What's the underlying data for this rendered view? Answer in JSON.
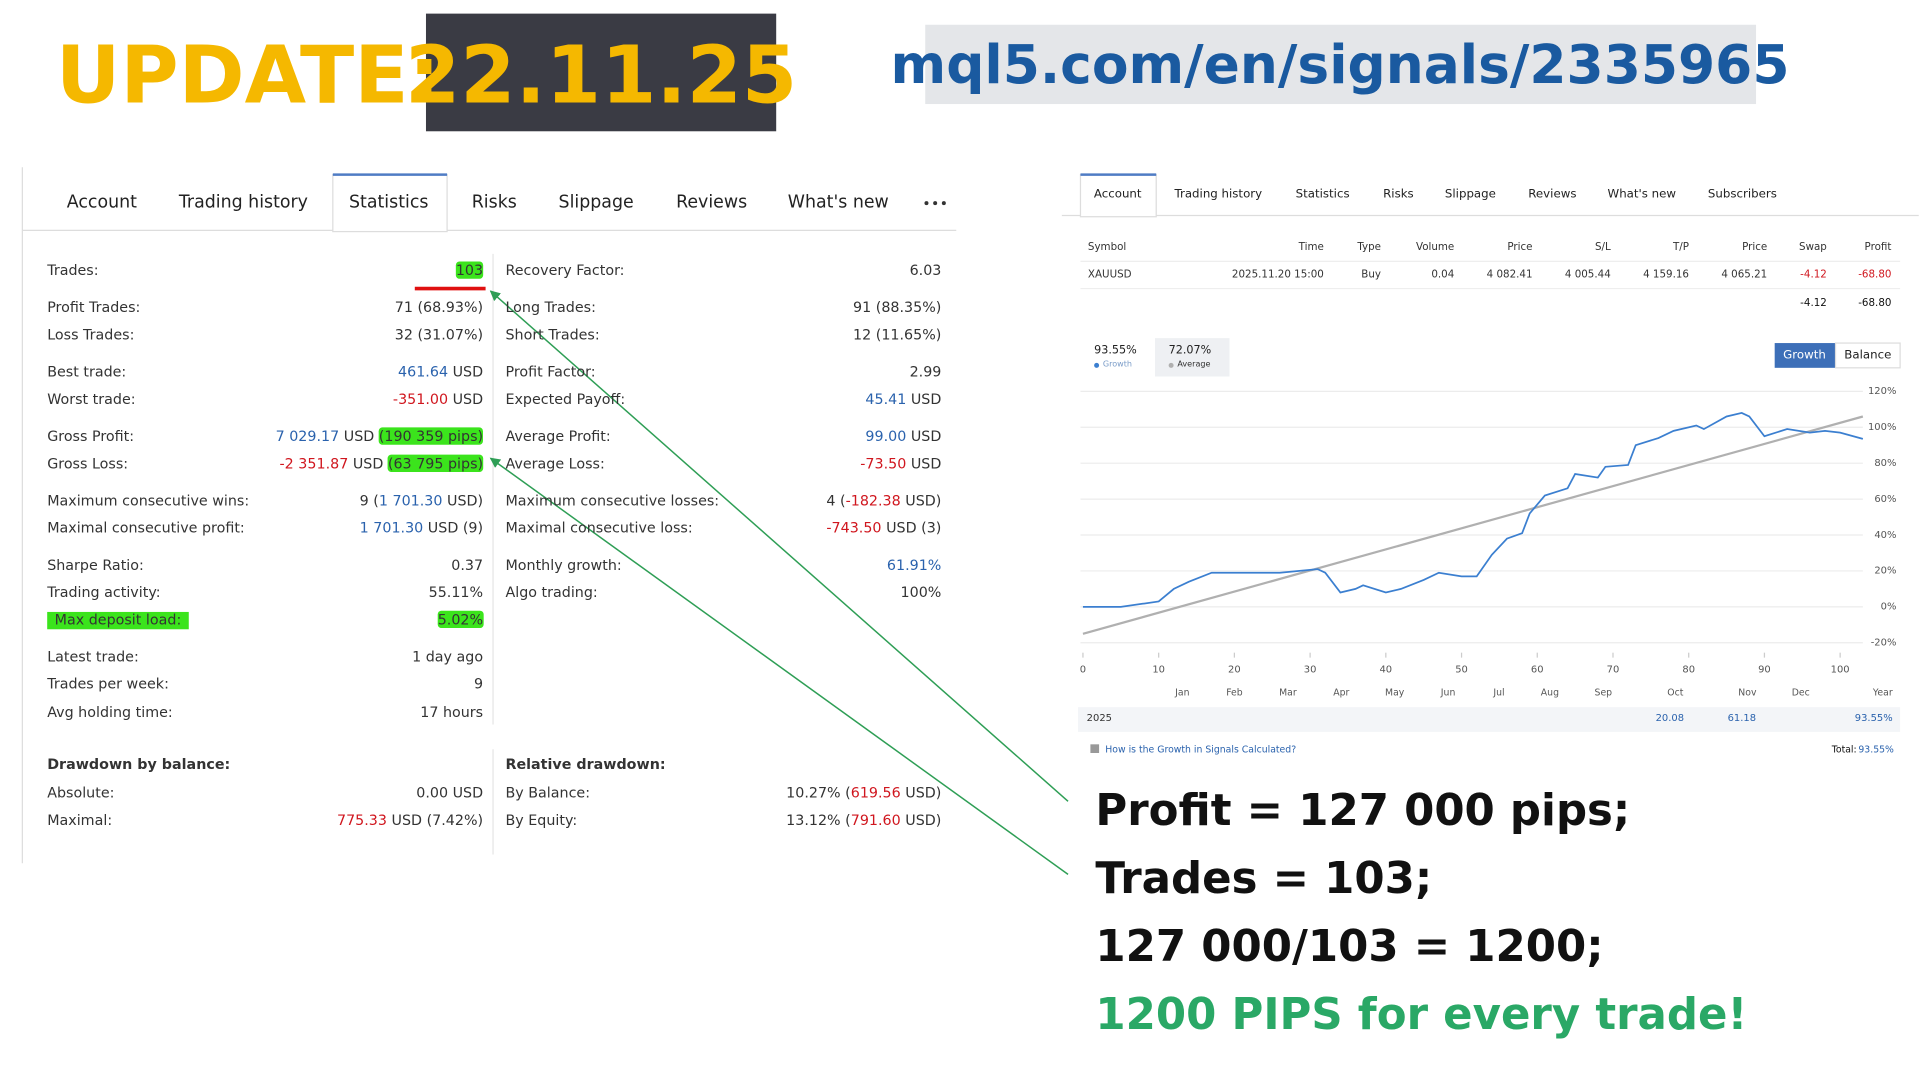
{
  "header": {
    "title": "UPDATE:",
    "date": "22.11.25",
    "url": "mql5.com/en/signals/2335965"
  },
  "left_panel": {
    "tabs": [
      "Account",
      "Trading history",
      "Statistics",
      "Risks",
      "Slippage",
      "Reviews",
      "What's new"
    ],
    "left_column": [
      {
        "label": "Trades:",
        "value": [
          {
            "text": "103",
            "highlight": "#3be41c"
          }
        ]
      },
      {
        "label": "Profit Trades:",
        "value": [
          "71 (68.93%)"
        ]
      },
      {
        "label": "Loss Trades:",
        "value": [
          "32 (31.07%)"
        ]
      },
      {
        "label": "Best trade:",
        "value": [
          {
            "text": "461.64",
            "color": "#2a62ad"
          },
          " USD"
        ]
      },
      {
        "label": "Worst trade:",
        "value": [
          {
            "text": "-351.00",
            "color": "#d0161e"
          },
          " USD"
        ]
      },
      {
        "label": "Gross Profit:",
        "value": [
          {
            "text": "7 029.17",
            "color": "#2a62ad"
          },
          " USD ",
          {
            "text": "(190 359 pips)",
            "highlight": "#3be41c"
          }
        ]
      },
      {
        "label": "Gross Loss:",
        "value": [
          {
            "text": "-2 351.87",
            "color": "#d0161e"
          },
          " USD ",
          {
            "text": "(63 795 pips)",
            "highlight": "#3be41c"
          }
        ]
      },
      {
        "label": "Maximum consecutive wins:",
        "value": [
          "9 (",
          {
            "text": "1 701.30",
            "color": "#2a62ad"
          },
          " USD)"
        ]
      },
      {
        "label": "Maximal consecutive profit:",
        "value": [
          {
            "text": "1 701.30",
            "color": "#2a62ad"
          },
          " USD (9)"
        ]
      },
      {
        "label": "Sharpe Ratio:",
        "value": [
          "0.37"
        ]
      },
      {
        "label": "Trading activity:",
        "value": [
          "55.11%"
        ]
      },
      {
        "label": "Max deposit load:",
        "label_highlight": "#3be41c",
        "value": [
          {
            "text": "5.02%",
            "highlight": "#3be41c"
          }
        ]
      },
      {
        "label": "Latest trade:",
        "value": [
          "1 day ago"
        ]
      },
      {
        "label": "Trades per week:",
        "value": [
          "9"
        ]
      },
      {
        "label": "Avg holding time:",
        "value": [
          "17 hours"
        ]
      }
    ],
    "right_column": [
      {
        "label": "Recovery Factor:",
        "value": [
          "6.03"
        ]
      },
      {
        "label": "Long Trades:",
        "value": [
          "91 (88.35%)"
        ]
      },
      {
        "label": "Short Trades:",
        "value": [
          "12 (11.65%)"
        ]
      },
      {
        "label": "Profit Factor:",
        "value": [
          "2.99"
        ]
      },
      {
        "label": "Expected Payoff:",
        "value": [
          {
            "text": "45.41",
            "color": "#2a62ad"
          },
          " USD"
        ]
      },
      {
        "label": "Average Profit:",
        "value": [
          {
            "text": "99.00",
            "color": "#2a62ad"
          },
          " USD"
        ]
      },
      {
        "label": "Average Loss:",
        "value": [
          {
            "text": "-73.50",
            "color": "#d0161e"
          },
          " USD"
        ]
      },
      {
        "label": "Maximum consecutive losses:",
        "value": [
          "4 (",
          {
            "text": "-182.38",
            "color": "#d0161e"
          },
          " USD)"
        ]
      },
      {
        "label": "Maximal consecutive loss:",
        "value": [
          {
            "text": "-743.50",
            "color": "#d0161e"
          },
          " USD (3)"
        ]
      },
      {
        "label": "Monthly growth:",
        "value": [
          {
            "text": "61.91%",
            "color": "#2a62ad"
          }
        ]
      },
      {
        "label": "Algo trading:",
        "value": [
          "100%"
        ]
      }
    ],
    "drawdown": {
      "left_title": "Drawdown by balance:",
      "left": [
        {
          "label": "Absolute:",
          "value": [
            "0.00 USD"
          ]
        },
        {
          "label": "Maximal:",
          "value": [
            {
              "text": "775.33",
              "color": "#d0161e"
            },
            " USD (7.42%)"
          ]
        }
      ],
      "right_title": "Relative drawdown:",
      "right": [
        {
          "label": "By Balance:",
          "value": [
            "10.27% (",
            {
              "text": "619.56",
              "color": "#d0161e"
            },
            " USD)"
          ]
        },
        {
          "label": "By Equity:",
          "value": [
            "13.12% (",
            {
              "text": "791.60",
              "color": "#d0161e"
            },
            " USD)"
          ]
        }
      ]
    }
  },
  "right_panel": {
    "tabs": [
      "Account",
      "Trading history",
      "Statistics",
      "Risks",
      "Slippage",
      "Reviews",
      "What's new",
      "Subscribers"
    ],
    "table": {
      "columns": [
        "Symbol",
        "Time",
        "Type",
        "Volume",
        "Price",
        "S/L",
        "T/P",
        "Price",
        "Swap",
        "Profit"
      ],
      "rows": [
        [
          "XAUUSD",
          "2025.11.20 15:00",
          "Buy",
          "0.04",
          "4 082.41",
          "4 005.44",
          "4 159.16",
          "4 065.21",
          "-4.12",
          "-68.80"
        ]
      ],
      "totals": [
        "-4.12",
        "-68.80"
      ]
    },
    "buttons": [
      "Growth",
      "Balance"
    ],
    "summary": {
      "year": "2025",
      "values": [
        "20.08",
        "61.18"
      ],
      "total": "93.55%"
    },
    "help_link": "How is the Growth in Signals Calculated?",
    "total_label": "Total:",
    "total_value": "93.55%"
  },
  "chart_data": {
    "type": "line",
    "series": [
      {
        "name": "Growth",
        "current": "93.55%",
        "color": "#3b7fd0",
        "x": [
          0,
          5,
          10,
          12,
          14,
          17,
          21,
          26,
          31,
          32,
          34,
          36,
          37,
          40,
          42,
          45,
          47,
          50,
          52,
          54,
          56,
          58,
          59,
          61,
          64,
          65,
          68,
          69,
          72,
          73,
          76,
          78,
          81,
          82,
          85,
          87,
          88,
          90,
          93,
          96,
          98,
          100,
          103
        ],
        "values": [
          0,
          0,
          3,
          10,
          14,
          19,
          19,
          19,
          21,
          19,
          8,
          10,
          12,
          8,
          10,
          15,
          19,
          17,
          17,
          29,
          38,
          41,
          52,
          62,
          66,
          74,
          72,
          78,
          79,
          90,
          94,
          98,
          101,
          99,
          106,
          108,
          106,
          95,
          99,
          97,
          98,
          97,
          93.55
        ]
      },
      {
        "name": "Average",
        "current": "72.07%",
        "color": "#b0b0b0",
        "x": [
          0,
          103
        ],
        "values": [
          -15,
          106
        ]
      }
    ],
    "xlim": [
      0,
      103
    ],
    "xticks": [
      0,
      10,
      20,
      30,
      40,
      50,
      60,
      70,
      80,
      90,
      100
    ],
    "ylim": [
      -20,
      120
    ],
    "yticks": [
      {
        "value": 120,
        "label": "120%"
      },
      {
        "value": 100,
        "label": "100%"
      },
      {
        "value": 80,
        "label": "80%"
      },
      {
        "value": 60,
        "label": "60%"
      },
      {
        "value": 40,
        "label": "40%"
      },
      {
        "value": 20,
        "label": "20%"
      },
      {
        "value": 0,
        "label": "0%"
      },
      {
        "value": -20,
        "label": "-20%"
      }
    ],
    "grid": true,
    "months": [
      "Jan",
      "Feb",
      "Mar",
      "Apr",
      "May",
      "Jun",
      "Jul",
      "Aug",
      "Sep",
      "Oct",
      "Nov",
      "Dec"
    ],
    "period_label": "Year"
  },
  "notes": [
    "Profit = 127 000 pips;",
    "Trades = 103;",
    "127 000/103 = 1200;",
    "1200 PIPS for every trade!"
  ]
}
